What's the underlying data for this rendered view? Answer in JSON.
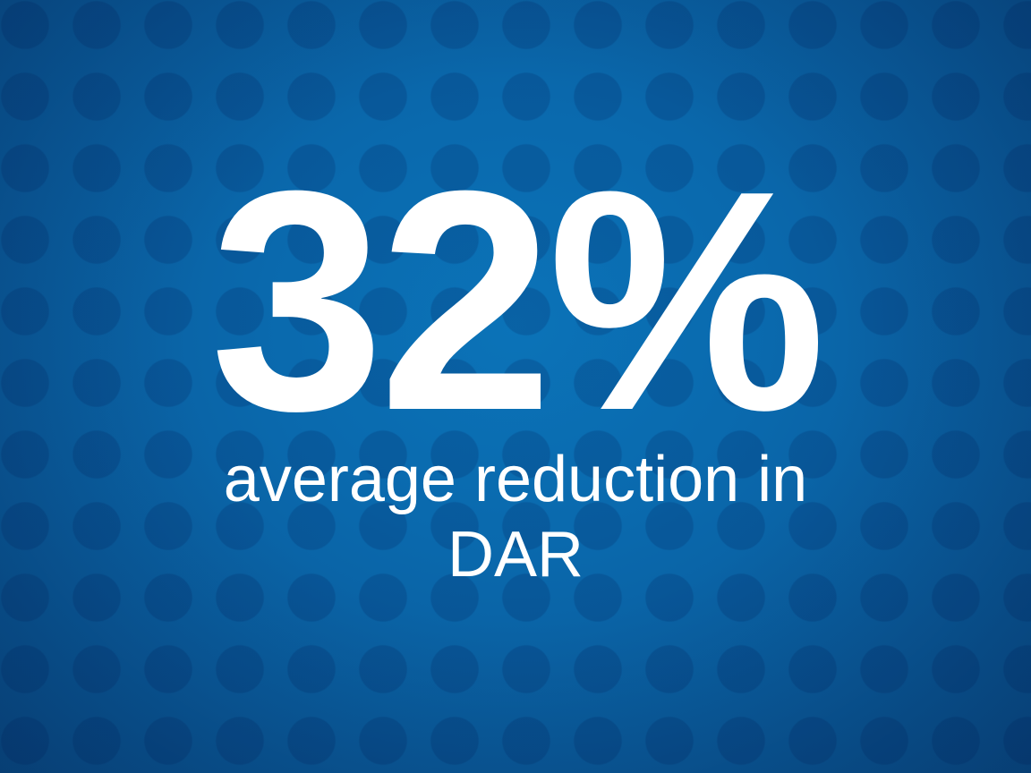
{
  "slide": {
    "headline": "32%",
    "subline_lines": [
      "average reduction in",
      "DAR"
    ],
    "colors": {
      "background": "#0a69ad",
      "text": "#ffffff"
    }
  }
}
